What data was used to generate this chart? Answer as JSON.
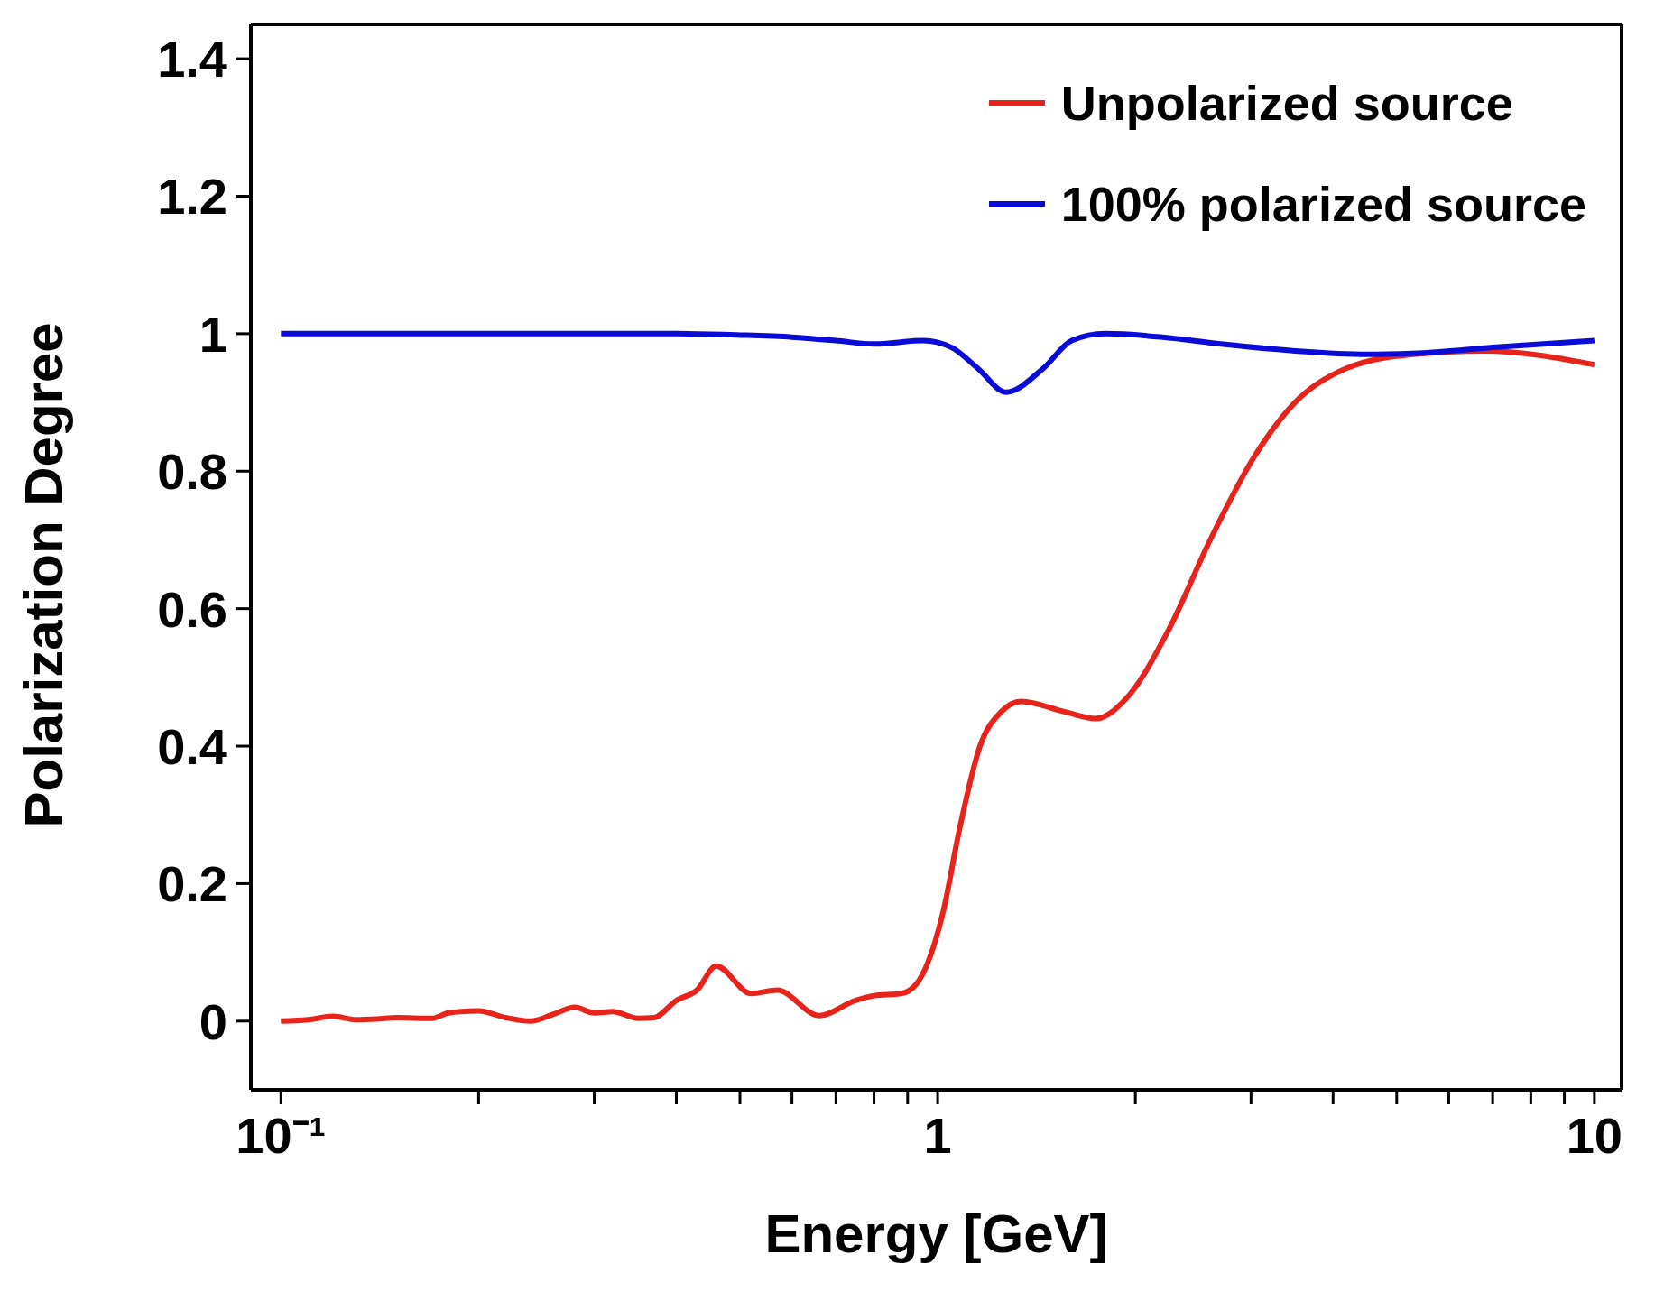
{
  "chart_data": {
    "type": "line",
    "xlabel": "Energy [GeV]",
    "ylabel": "Polarization Degree",
    "log": "x",
    "xlim": [
      0.09,
      11
    ],
    "ylim": [
      -0.1,
      1.45
    ],
    "xticks": [
      {
        "value": 0.1,
        "label": "10⁻¹"
      },
      {
        "value": 0.2,
        "label": null
      },
      {
        "value": 0.3,
        "label": null
      },
      {
        "value": 0.4,
        "label": null
      },
      {
        "value": 0.5,
        "label": null
      },
      {
        "value": 0.6,
        "label": null
      },
      {
        "value": 0.7,
        "label": null
      },
      {
        "value": 0.8,
        "label": null
      },
      {
        "value": 0.9,
        "label": null
      },
      1,
      {
        "value": 2,
        "label": null
      },
      {
        "value": 3,
        "label": null
      },
      {
        "value": 4,
        "label": null
      },
      {
        "value": 5,
        "label": null
      },
      {
        "value": 6,
        "label": null
      },
      {
        "value": 7,
        "label": null
      },
      {
        "value": 8,
        "label": null
      },
      {
        "value": 9,
        "label": null
      },
      10
    ],
    "yticks": [
      0,
      0.2,
      0.4,
      0.6,
      0.8,
      1,
      1.2,
      1.4
    ],
    "grid": false,
    "legend": "top right",
    "marker": "none",
    "line_style": "solid",
    "series": [
      {
        "name": "Unpolarized source",
        "color": "#e8231c",
        "x": [
          0.1,
          0.11,
          0.12,
          0.13,
          0.14,
          0.15,
          0.17,
          0.18,
          0.2,
          0.22,
          0.24,
          0.26,
          0.28,
          0.3,
          0.32,
          0.35,
          0.37,
          0.4,
          0.43,
          0.46,
          0.52,
          0.57,
          0.66,
          0.75,
          0.8,
          0.88,
          0.93,
          1.02,
          1.08,
          1.16,
          1.25,
          1.34,
          1.56,
          1.74,
          1.94,
          2.25,
          2.6,
          3.03,
          3.5,
          4.2,
          5.3,
          6.8,
          10
        ],
        "values": [
          0,
          0.002,
          0.007,
          0.002,
          0.003,
          0.005,
          0.004,
          0.012,
          0.015,
          0.005,
          0,
          0.01,
          0.02,
          0.012,
          0.014,
          0.004,
          0.005,
          0.03,
          0.045,
          0.08,
          0.04,
          0.045,
          0.008,
          0.03,
          0.037,
          0.04,
          0.055,
          0.16,
          0.28,
          0.4,
          0.45,
          0.465,
          0.45,
          0.44,
          0.47,
          0.57,
          0.7,
          0.82,
          0.9,
          0.95,
          0.97,
          0.975,
          0.955
        ]
      },
      {
        "name": "100% polarized source",
        "color": "#0b0bd9",
        "x": [
          0.1,
          0.2,
          0.3,
          0.4,
          0.5,
          0.6,
          0.7,
          0.8,
          0.95,
          1.05,
          1.15,
          1.27,
          1.45,
          1.6,
          1.8,
          2.2,
          2.7,
          3.5,
          4.5,
          5.5,
          7,
          10
        ],
        "values": [
          1,
          1,
          1,
          1,
          0.998,
          0.995,
          0.99,
          0.985,
          0.99,
          0.98,
          0.95,
          0.915,
          0.95,
          0.99,
          1,
          0.995,
          0.985,
          0.975,
          0.97,
          0.972,
          0.98,
          0.99
        ]
      }
    ]
  }
}
